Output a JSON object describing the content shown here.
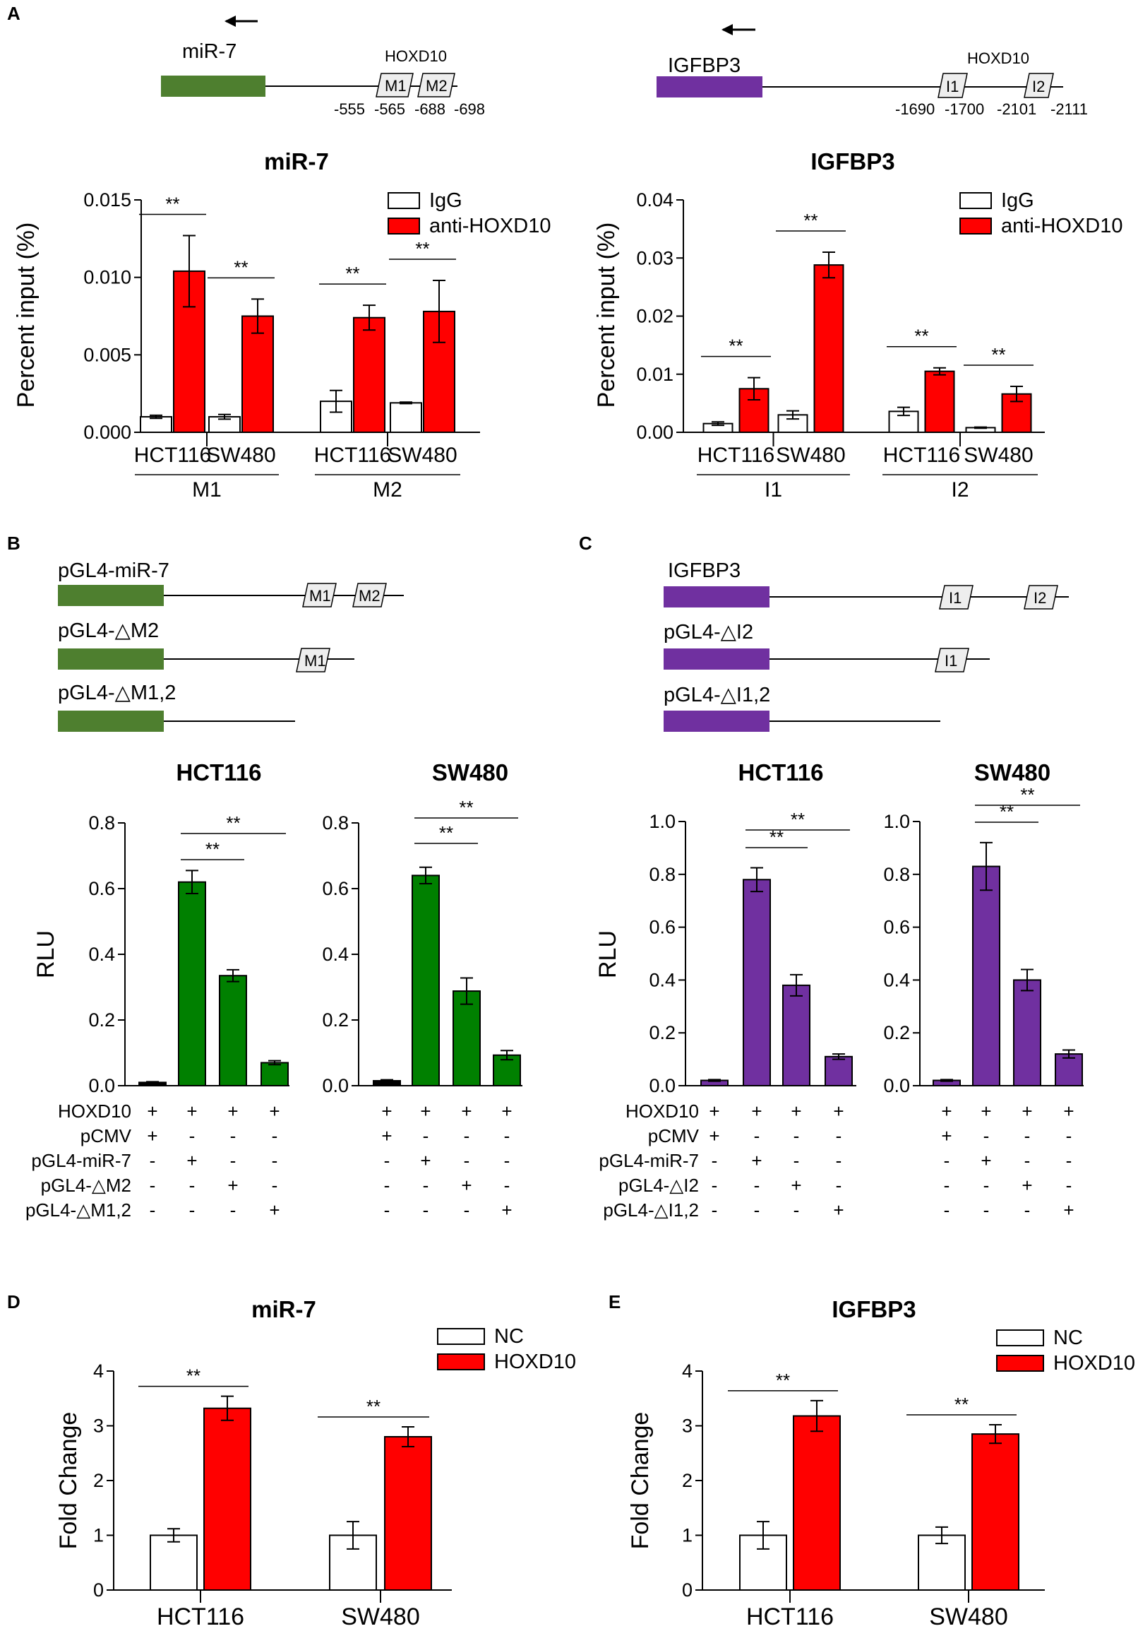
{
  "panel_labels": [
    "A",
    "B",
    "C",
    "D",
    "E"
  ],
  "schematics": {
    "A_left": {
      "gene": "miR-7",
      "tf": "HOXD10",
      "sites": [
        "M1",
        "M2"
      ],
      "positions": [
        "-555",
        "-565",
        "-688",
        "-698"
      ],
      "color": "#4e7f2f"
    },
    "A_right": {
      "gene": "IGFBP3",
      "tf": "HOXD10",
      "sites": [
        "I1",
        "I2"
      ],
      "positions": [
        "-1690",
        "-1700",
        "-2101",
        "-2111"
      ],
      "color": "#7030a0"
    },
    "B": {
      "constructs": [
        {
          "name": "pGL4-miR-7",
          "sites": [
            "M1",
            "M2"
          ]
        },
        {
          "name": "pGL4-△M2",
          "sites": [
            "M1"
          ]
        },
        {
          "name": "pGL4-△M1,2",
          "sites": []
        }
      ],
      "color": "#4e7f2f"
    },
    "C": {
      "constructs": [
        {
          "name": "IGFBP3",
          "sites": [
            "I1",
            "I2"
          ]
        },
        {
          "name": "pGL4-△I2",
          "sites": [
            "I1"
          ]
        },
        {
          "name": "pGL4-△I1,2",
          "sites": []
        }
      ],
      "color": "#7030a0"
    }
  },
  "chart_data": [
    {
      "id": "A1",
      "type": "bar",
      "title": "miR-7",
      "ylabel": "Percent input (%)",
      "ylim": [
        0,
        0.015
      ],
      "yticks": [
        "0.000",
        "0.005",
        "0.010",
        "0.015"
      ],
      "categories": [
        "HCT116",
        "SW480",
        "HCT116",
        "SW480"
      ],
      "groups": [
        "M1",
        "M2"
      ],
      "series": [
        {
          "name": "IgG",
          "color": "#ffffff",
          "values": [
            0.001,
            0.001,
            0.002,
            0.0019
          ],
          "errors": [
            0.0001,
            0.00015,
            0.0007,
            5e-05
          ]
        },
        {
          "name": "anti-HOXD10",
          "color": "#ff0000",
          "values": [
            0.0104,
            0.0075,
            0.0074,
            0.0078
          ],
          "errors": [
            0.0023,
            0.0011,
            0.0008,
            0.002
          ]
        }
      ],
      "significance": [
        "**",
        "**",
        "**",
        "**"
      ],
      "legend_position": "top-right"
    },
    {
      "id": "A2",
      "type": "bar",
      "title": "IGFBP3",
      "ylabel": "Percent input (%)",
      "ylim": [
        0,
        0.04
      ],
      "yticks": [
        "0.00",
        "0.01",
        "0.02",
        "0.03",
        "0.04"
      ],
      "categories": [
        "HCT116",
        "SW480",
        "HCT116",
        "SW480"
      ],
      "groups": [
        "I1",
        "I2"
      ],
      "series": [
        {
          "name": "IgG",
          "color": "#ffffff",
          "values": [
            0.0015,
            0.003,
            0.0036,
            0.0008
          ],
          "errors": [
            0.0003,
            0.0007,
            0.0007,
            0.0001
          ]
        },
        {
          "name": "anti-HOXD10",
          "color": "#ff0000",
          "values": [
            0.0075,
            0.0288,
            0.0105,
            0.0066
          ],
          "errors": [
            0.0019,
            0.0022,
            0.0006,
            0.0013
          ]
        }
      ],
      "significance": [
        "**",
        "**",
        "**",
        "**"
      ],
      "legend_position": "top-right"
    },
    {
      "id": "B1",
      "type": "bar",
      "title": "HCT116",
      "ylabel": "RLU",
      "ylim": [
        0,
        0.8
      ],
      "yticks": [
        "0.0",
        "0.2",
        "0.4",
        "0.6",
        "0.8"
      ],
      "values": [
        0.01,
        0.62,
        0.335,
        0.07
      ],
      "errors": [
        0.002,
        0.035,
        0.018,
        0.006
      ],
      "colors": [
        "#000000",
        "#008000",
        "#008000",
        "#008000"
      ],
      "significance": [
        {
          "from": 1,
          "to": 2,
          "label": "**"
        },
        {
          "from": 1,
          "to": 3,
          "label": "**"
        }
      ]
    },
    {
      "id": "B2",
      "type": "bar",
      "title": "SW480",
      "ylabel": "",
      "ylim": [
        0,
        0.8
      ],
      "yticks": [
        "0.0",
        "0.2",
        "0.4",
        "0.6",
        "0.8"
      ],
      "values": [
        0.015,
        0.64,
        0.288,
        0.093
      ],
      "errors": [
        0.003,
        0.025,
        0.04,
        0.014
      ],
      "colors": [
        "#000000",
        "#008000",
        "#008000",
        "#008000"
      ],
      "significance": [
        {
          "from": 1,
          "to": 2,
          "label": "**"
        },
        {
          "from": 1,
          "to": 3,
          "label": "**"
        }
      ]
    },
    {
      "id": "C1",
      "type": "bar",
      "title": "HCT116",
      "ylabel": "RLU",
      "ylim": [
        0,
        1.0
      ],
      "yticks": [
        "0.0",
        "0.2",
        "0.4",
        "0.6",
        "0.8",
        "1.0"
      ],
      "values": [
        0.02,
        0.78,
        0.38,
        0.11
      ],
      "errors": [
        0.003,
        0.045,
        0.04,
        0.01
      ],
      "colors": [
        "#7030a0",
        "#7030a0",
        "#7030a0",
        "#7030a0"
      ],
      "significance": [
        {
          "from": 1,
          "to": 2,
          "label": "**"
        },
        {
          "from": 1,
          "to": 3,
          "label": "**"
        }
      ]
    },
    {
      "id": "C2",
      "type": "bar",
      "title": "SW480",
      "ylabel": "",
      "ylim": [
        0,
        1.0
      ],
      "yticks": [
        "0.0",
        "0.2",
        "0.4",
        "0.6",
        "0.8",
        "1.0"
      ],
      "values": [
        0.02,
        0.83,
        0.4,
        0.12
      ],
      "errors": [
        0.003,
        0.09,
        0.04,
        0.015
      ],
      "colors": [
        "#7030a0",
        "#7030a0",
        "#7030a0",
        "#7030a0"
      ],
      "significance": [
        {
          "from": 1,
          "to": 2,
          "label": "**"
        },
        {
          "from": 1,
          "to": 3,
          "label": "**"
        }
      ]
    },
    {
      "id": "D",
      "type": "bar",
      "title": "miR-7",
      "ylabel": "Fold Change",
      "ylim": [
        0,
        4
      ],
      "yticks": [
        "0",
        "1",
        "2",
        "3",
        "4"
      ],
      "categories": [
        "HCT116",
        "SW480"
      ],
      "series": [
        {
          "name": "NC",
          "color": "#ffffff",
          "values": [
            1.0,
            1.0
          ],
          "errors": [
            0.12,
            0.25
          ]
        },
        {
          "name": "HOXD10",
          "color": "#ff0000",
          "values": [
            3.32,
            2.8
          ],
          "errors": [
            0.22,
            0.18
          ]
        }
      ],
      "significance": [
        "**",
        "**"
      ],
      "legend_position": "top-right"
    },
    {
      "id": "E",
      "type": "bar",
      "title": "IGFBP3",
      "ylabel": "Fold Change",
      "ylim": [
        0,
        4
      ],
      "yticks": [
        "0",
        "1",
        "2",
        "3",
        "4"
      ],
      "categories": [
        "HCT116",
        "SW480"
      ],
      "series": [
        {
          "name": "NC",
          "color": "#ffffff",
          "values": [
            1.0,
            1.0
          ],
          "errors": [
            0.25,
            0.15
          ]
        },
        {
          "name": "HOXD10",
          "color": "#ff0000",
          "values": [
            3.18,
            2.85
          ],
          "errors": [
            0.28,
            0.17
          ]
        }
      ],
      "significance": [
        "**",
        "**"
      ],
      "legend_position": "top-right"
    }
  ],
  "design_tables": {
    "B": {
      "rows": [
        {
          "label": "HOXD10",
          "marks": [
            "+",
            "+",
            "+",
            "+"
          ]
        },
        {
          "label": "pCMV",
          "marks": [
            "+",
            "-",
            "-",
            "-"
          ]
        },
        {
          "label": "pGL4-miR-7",
          "marks": [
            "-",
            "+",
            "-",
            "-"
          ]
        },
        {
          "label": "pGL4-△M2",
          "marks": [
            "-",
            "-",
            "+",
            "-"
          ]
        },
        {
          "label": "pGL4-△M1,2",
          "marks": [
            "-",
            "-",
            "-",
            "+"
          ]
        }
      ]
    },
    "C": {
      "rows": [
        {
          "label": "HOXD10",
          "marks": [
            "+",
            "+",
            "+",
            "+"
          ]
        },
        {
          "label": "pCMV",
          "marks": [
            "+",
            "-",
            "-",
            "-"
          ]
        },
        {
          "label": "pGL4-miR-7",
          "marks": [
            "-",
            "+",
            "-",
            "-"
          ]
        },
        {
          "label": "pGL4-△I2",
          "marks": [
            "-",
            "-",
            "+",
            "-"
          ]
        },
        {
          "label": "pGL4-△I1,2",
          "marks": [
            "-",
            "-",
            "-",
            "+"
          ]
        }
      ]
    }
  }
}
